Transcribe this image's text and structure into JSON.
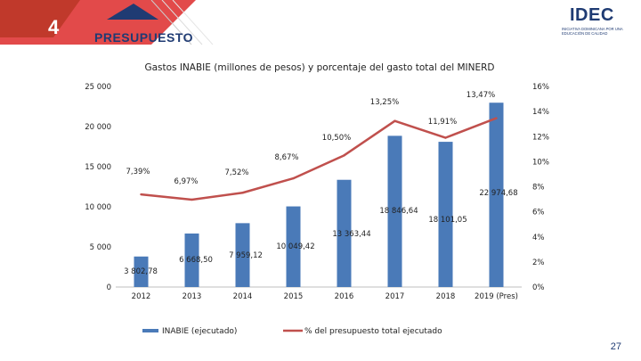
{
  "slide": {
    "number": "4",
    "section_title": "PRESUPUESTO",
    "page_number": "27",
    "logo": {
      "word": "IDEC",
      "tagline": "Iniciativa Dominicana por una Educación de Calidad"
    }
  },
  "colors": {
    "bar": "#4a7ab8",
    "line": "#c0504d",
    "banner": "#e24a4a",
    "navy": "#1f3b73"
  },
  "chart_data": {
    "type": "bar",
    "title": "Gastos INABIE (millones de pesos) y porcentaje del gasto total del MINERD",
    "categories": [
      "2012",
      "2013",
      "2014",
      "2015",
      "2016",
      "2017",
      "2018",
      "2019 (Pres)"
    ],
    "series": [
      {
        "name": "INABIE (ejecutado)",
        "type": "bar",
        "axis": "left",
        "values": [
          3802.78,
          6668.5,
          7959.12,
          10049.42,
          13363.44,
          18846.64,
          18101.05,
          22974.68
        ],
        "labels": [
          "3 802,78",
          "6 668,50",
          "7 959,12",
          "10 049,42",
          "13 363,44",
          "18 846,64",
          "18 101,05",
          "22 974,68"
        ]
      },
      {
        "name": "% del presupuesto total ejecutado",
        "type": "line",
        "axis": "right",
        "values": [
          7.39,
          6.97,
          7.52,
          8.67,
          10.5,
          13.25,
          11.91,
          13.47
        ],
        "labels": [
          "7,39%",
          "6,97%",
          "7,52%",
          "8,67%",
          "10,50%",
          "13,25%",
          "11,91%",
          "13,47%"
        ]
      }
    ],
    "y_left": {
      "min": 0,
      "max": 25000,
      "ticks": [
        "0",
        "5 000",
        "10 000",
        "15 000",
        "20 000",
        "25 000"
      ],
      "tick_values": [
        0,
        5000,
        10000,
        15000,
        20000,
        25000
      ]
    },
    "y_right": {
      "min": 0,
      "max": 16,
      "ticks": [
        "0%",
        "2%",
        "4%",
        "6%",
        "8%",
        "10%",
        "12%",
        "14%",
        "16%"
      ],
      "tick_values": [
        0,
        2,
        4,
        6,
        8,
        10,
        12,
        14,
        16
      ]
    },
    "grid": false,
    "legend": "bottom"
  }
}
